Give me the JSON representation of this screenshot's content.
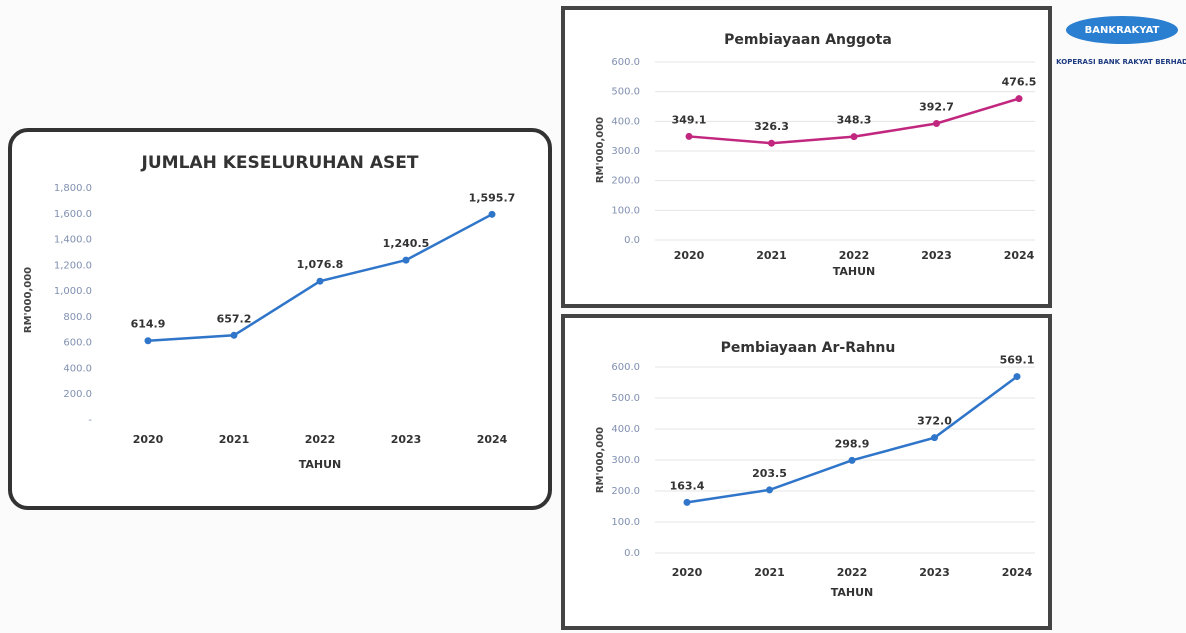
{
  "logo": {
    "text": "BANKRAKYAT",
    "caption": "KOPERASI BANK RAKYAT BERHAD"
  },
  "chart_data": [
    {
      "type": "line",
      "title": "JUMLAH KESELURUHAN ASET",
      "y_label": "RM'000,000",
      "x_label": "TAHUN",
      "categories": [
        "2020",
        "2021",
        "2022",
        "2023",
        "2024"
      ],
      "values": [
        614.9,
        657.2,
        1076.8,
        1240.5,
        1595.7
      ],
      "value_labels": [
        "614.9",
        "657.2",
        "1,076.8",
        "1,240.5",
        "1,595.7"
      ],
      "color": "#2f75c9",
      "ylim": [
        0,
        1800
      ],
      "yticks": [
        {
          "value": 0,
          "label": "-"
        },
        {
          "value": 200,
          "label": "200.0"
        },
        {
          "value": 400,
          "label": "400.0"
        },
        {
          "value": 600,
          "label": "600.0"
        },
        {
          "value": 800,
          "label": "800.0"
        },
        {
          "value": 1000,
          "label": "1,000.0"
        },
        {
          "value": 1200,
          "label": "1,200.0"
        },
        {
          "value": 1400,
          "label": "1,400.0"
        },
        {
          "value": 1600,
          "label": "1,600.0"
        },
        {
          "value": 1800,
          "label": "1,800.0"
        }
      ],
      "grid": false
    },
    {
      "type": "line",
      "title": "Pembiayaan Anggota",
      "y_label": "RM'000,000",
      "x_label": "TAHUN",
      "categories": [
        "2020",
        "2021",
        "2022",
        "2023",
        "2024"
      ],
      "values": [
        349.1,
        326.3,
        348.3,
        392.7,
        476.5
      ],
      "value_labels": [
        "349.1",
        "326.3",
        "348.3",
        "392.7",
        "476.5"
      ],
      "color": "#c2277f",
      "ylim": [
        0,
        600
      ],
      "yticks": [
        {
          "value": 0,
          "label": "0.0"
        },
        {
          "value": 100,
          "label": "100.0"
        },
        {
          "value": 200,
          "label": "200.0"
        },
        {
          "value": 300,
          "label": "300.0"
        },
        {
          "value": 400,
          "label": "400.0"
        },
        {
          "value": 500,
          "label": "500.0"
        },
        {
          "value": 600,
          "label": "600.0"
        }
      ],
      "grid": true
    },
    {
      "type": "line",
      "title": "Pembiayaan Ar-Rahnu",
      "y_label": "RM'000,000",
      "x_label": "TAHUN",
      "categories": [
        "2020",
        "2021",
        "2022",
        "2023",
        "2024"
      ],
      "values": [
        163.4,
        203.5,
        298.9,
        372.0,
        569.1
      ],
      "value_labels": [
        "163.4",
        "203.5",
        "298.9",
        "372.0",
        "569.1"
      ],
      "color": "#2f75c9",
      "ylim": [
        0,
        600
      ],
      "yticks": [
        {
          "value": 0,
          "label": "0.0"
        },
        {
          "value": 100,
          "label": "100.0"
        },
        {
          "value": 200,
          "label": "200.0"
        },
        {
          "value": 300,
          "label": "300.0"
        },
        {
          "value": 400,
          "label": "400.0"
        },
        {
          "value": 500,
          "label": "500.0"
        },
        {
          "value": 600,
          "label": "600.0"
        }
      ],
      "grid": true
    }
  ]
}
